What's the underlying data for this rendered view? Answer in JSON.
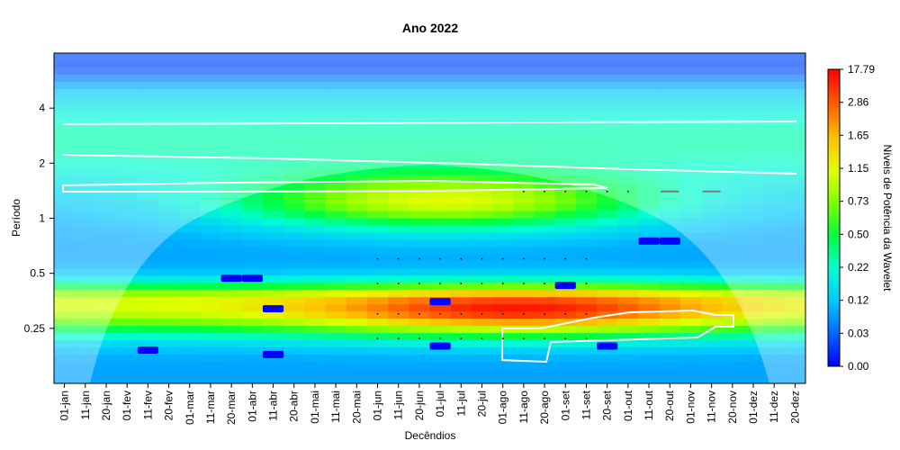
{
  "chart_data": {
    "type": "heatmap",
    "title": "Ano 2022",
    "xlabel": "Decêndios",
    "ylabel": "Período",
    "colorbar_label": "Níveis de Potência da Wavelet",
    "x_ticks": [
      "01-jan",
      "11-jan",
      "20-jan",
      "01-fev",
      "11-fev",
      "20-fev",
      "01-mar",
      "11-mar",
      "20-mar",
      "01-abr",
      "11-abr",
      "20-abr",
      "01-mai",
      "11-mai",
      "20-mai",
      "01-jun",
      "11-jun",
      "20-jun",
      "01-jul",
      "11-jul",
      "20-jul",
      "01-ago",
      "11-ago",
      "20-ago",
      "01-set",
      "11-set",
      "20-set",
      "01-out",
      "11-out",
      "20-out",
      "01-nov",
      "11-nov",
      "20-nov",
      "01-dez",
      "11-dez",
      "20-dez"
    ],
    "y_ticks": [
      {
        "value": 0.25,
        "label": "0.25"
      },
      {
        "value": 0.5,
        "label": "0.5"
      },
      {
        "value": 1,
        "label": "1"
      },
      {
        "value": 2,
        "label": "2"
      },
      {
        "value": 4,
        "label": "4"
      }
    ],
    "y_scale": "log2",
    "y_range": [
      0.125,
      8
    ],
    "colorbar_levels": [
      "0.00",
      "0.03",
      "0.12",
      "0.22",
      "0.50",
      "0.73",
      "1.15",
      "1.65",
      "2.86",
      "17.79"
    ],
    "colorbar_colors": [
      "#0000ff",
      "#0066ff",
      "#00c8ff",
      "#00ffd0",
      "#00ff40",
      "#80ff00",
      "#e0ff00",
      "#ffc000",
      "#ff6000",
      "#ff0000"
    ],
    "grid": false,
    "legend_position": "right"
  }
}
